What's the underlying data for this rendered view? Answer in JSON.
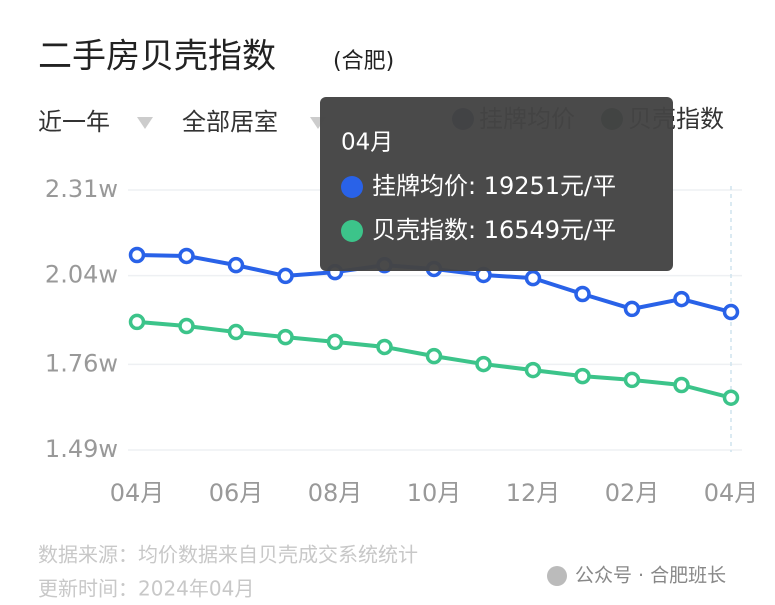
{
  "chart_data": {
    "type": "line",
    "title": "二手房贝壳指数",
    "subtitle": "(合肥)",
    "filters": [
      "近一年",
      "全部居室"
    ],
    "categories": [
      "04月",
      null,
      "06月",
      null,
      "08月",
      null,
      "10月",
      null,
      "12月",
      null,
      "02月",
      null,
      "04月"
    ],
    "series": [
      {
        "name": "挂牌均价",
        "color": "#2962e8",
        "legend_color": "#16296b",
        "values": [
          21050,
          21020,
          20730,
          20390,
          20510,
          20730,
          20610,
          20420,
          20320,
          19820,
          19350,
          19660,
          19251
        ]
      },
      {
        "name": "贝壳指数",
        "color": "#3cc48a",
        "legend_color": "#17452d",
        "values": [
          18940,
          18810,
          18620,
          18460,
          18310,
          18150,
          17860,
          17610,
          17420,
          17230,
          17110,
          16950,
          16549
        ]
      }
    ],
    "ylim": [
      14900,
      23100
    ],
    "yticks": [
      {
        "value": 14900,
        "label": "1.49w"
      },
      {
        "value": 17600,
        "label": "1.76w"
      },
      {
        "value": 20400,
        "label": "2.04w"
      },
      {
        "value": 23100,
        "label": "2.31w"
      }
    ],
    "grid": true,
    "tooltip": {
      "title": "04月",
      "lines": [
        "挂牌均价: 19251元/平",
        "贝壳指数: 16549元/平"
      ]
    },
    "source": "数据来源：均价数据来自贝壳成交系统统计",
    "updated": "更新时间：2024年04月",
    "watermark": "公众号 · 合肥班长"
  }
}
